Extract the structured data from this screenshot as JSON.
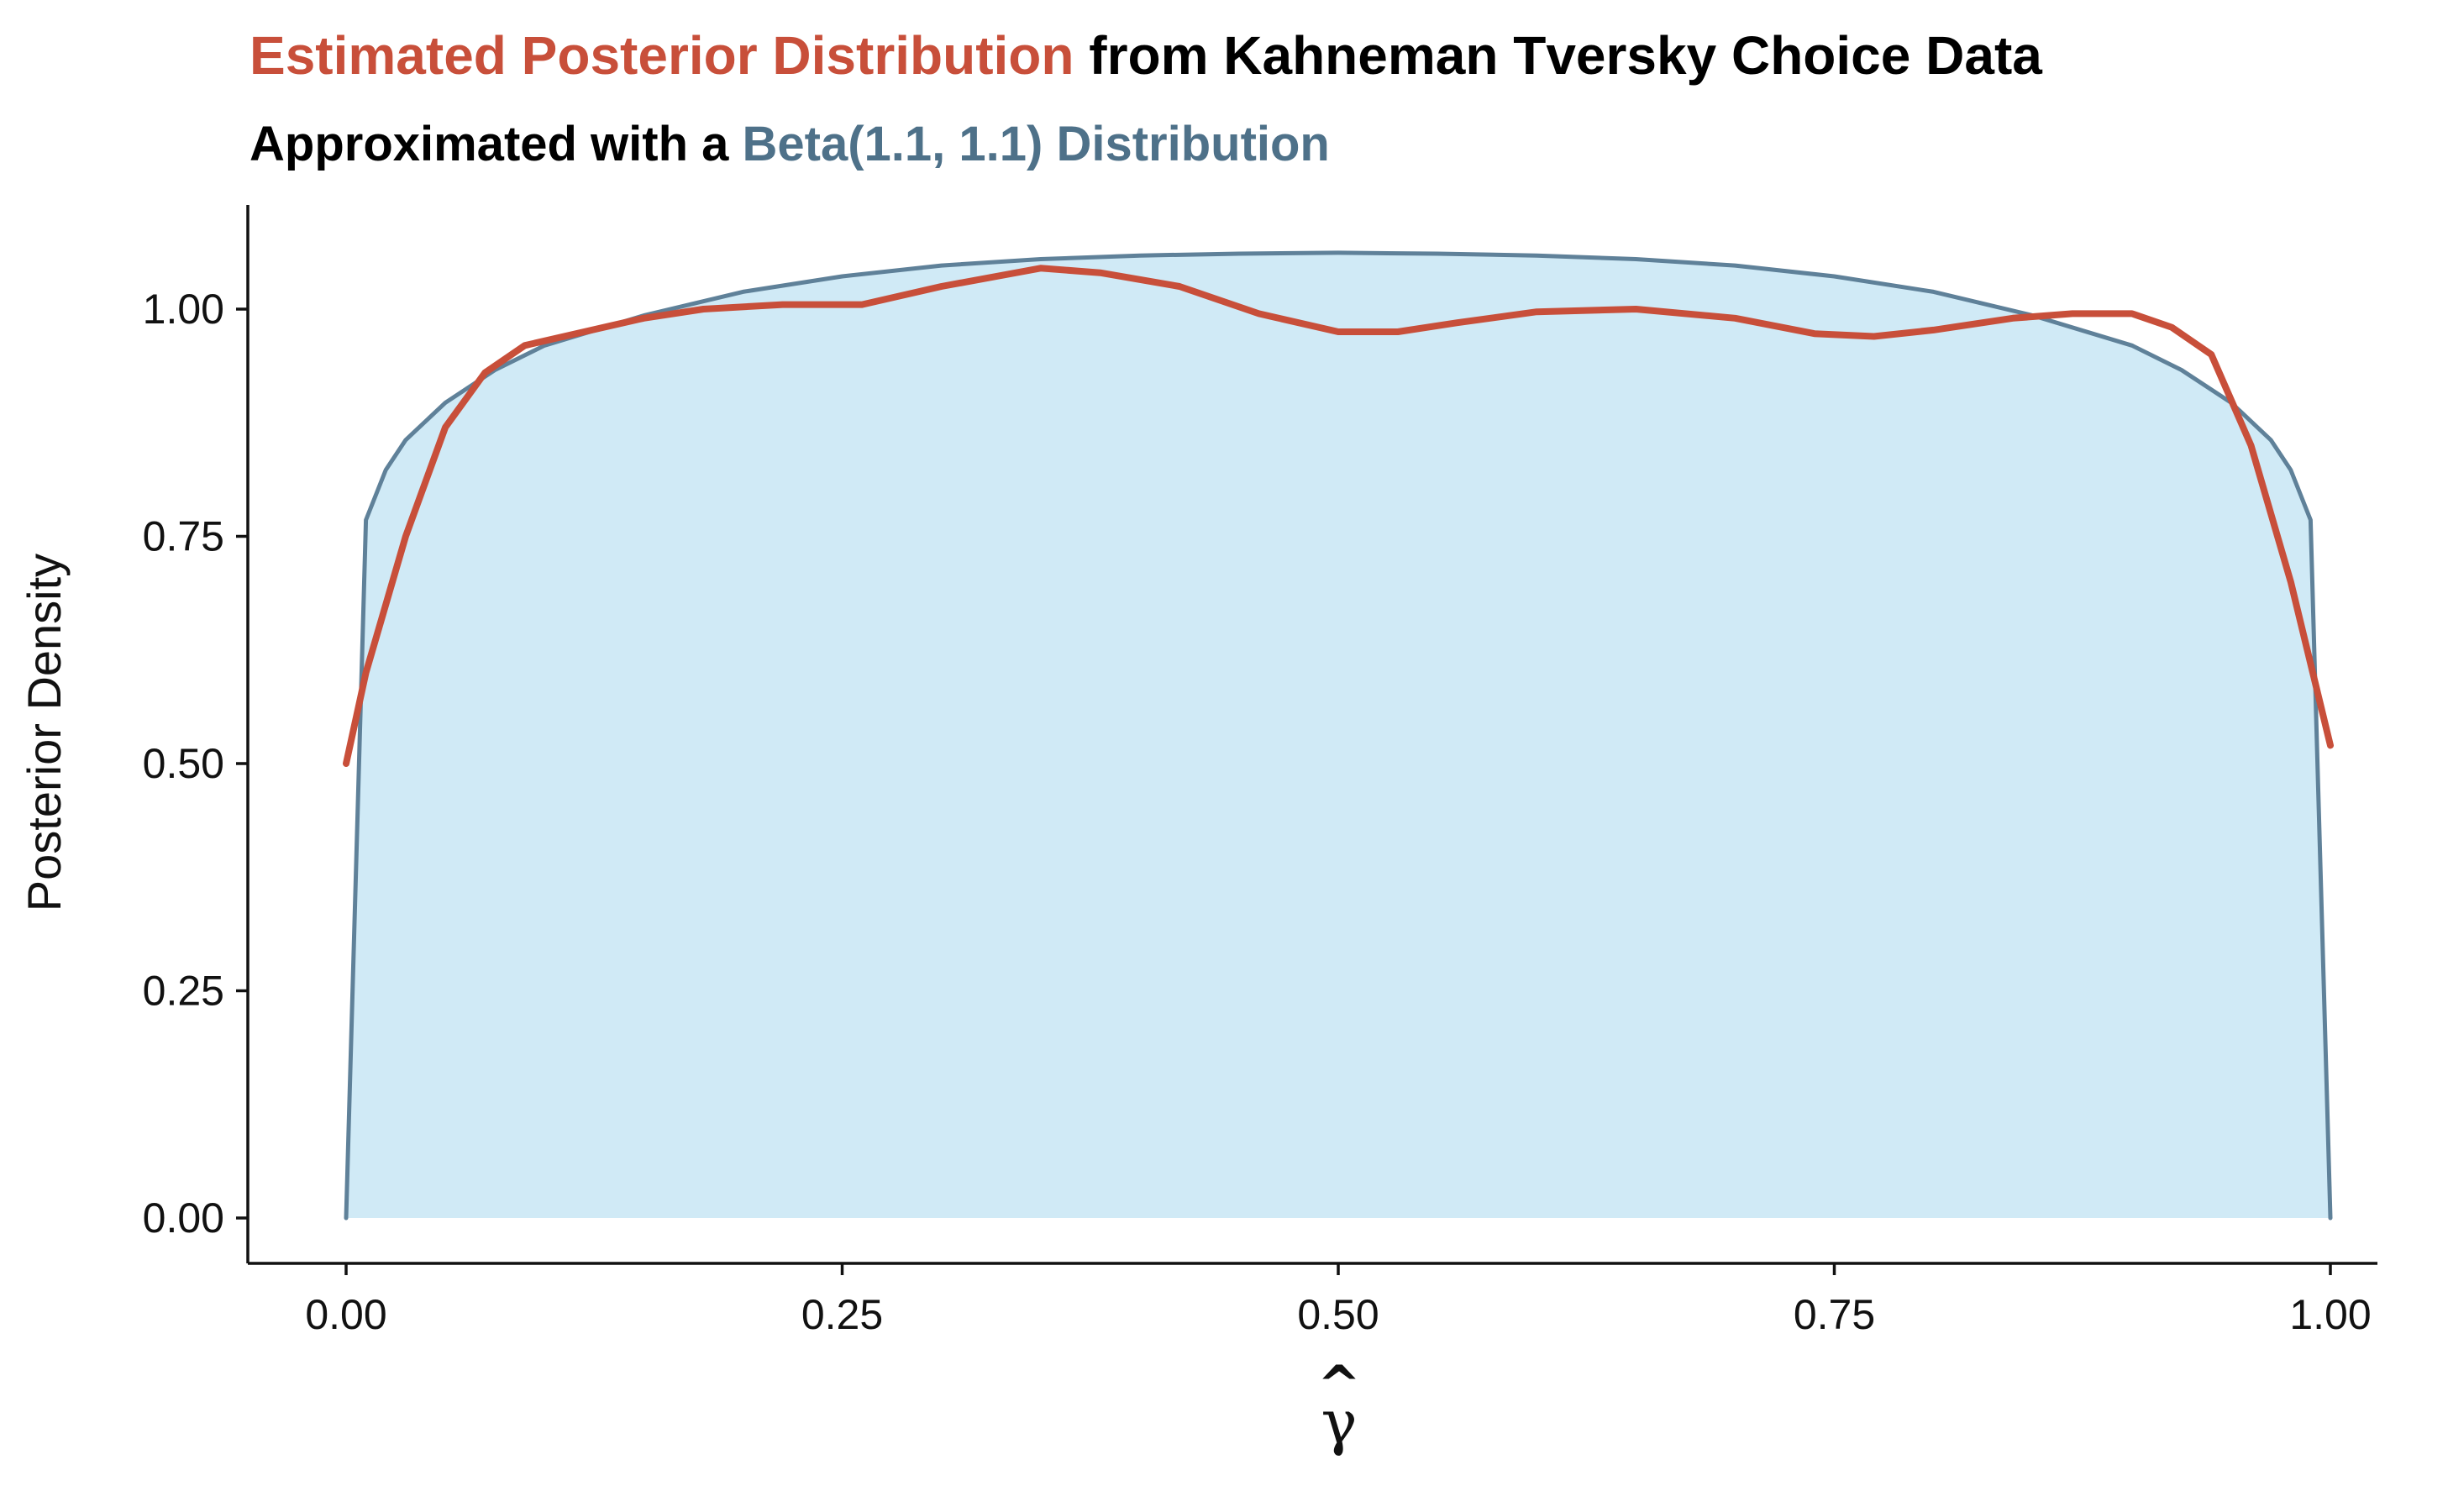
{
  "chart_data": {
    "type": "area",
    "title": {
      "highlight": "Estimated Posterior Distribution",
      "rest": " from Kahneman Tversky Choice Data",
      "highlight_color": "#c84f3a",
      "rest_color": "#000000"
    },
    "subtitle": {
      "prefix": "Approximated with a ",
      "highlight": "Beta(1.1, 1.1) Distribution",
      "prefix_color": "#000000",
      "highlight_color": "#4e7189"
    },
    "xlabel": "γ",
    "xlabel_hat": "^",
    "ylabel": "Posterior Density",
    "xlim": [
      -0.05,
      1.05
    ],
    "ylim": [
      -0.05,
      1.12
    ],
    "x_ticks": [
      0.0,
      0.25,
      0.5,
      0.75,
      1.0
    ],
    "x_tick_labels": [
      "0.00",
      "0.25",
      "0.50",
      "0.75",
      "1.00"
    ],
    "y_ticks": [
      0.0,
      0.25,
      0.5,
      0.75,
      1.0
    ],
    "y_tick_labels": [
      "0.00",
      "0.25",
      "0.50",
      "0.75",
      "1.00"
    ],
    "grid": false,
    "legend": "none",
    "series": [
      {
        "kind": "area",
        "fill_color": "#d0eaf6",
        "line_color": "#5f8199",
        "x": [
          0.0,
          0.01,
          0.02,
          0.03,
          0.05,
          0.075,
          0.1,
          0.15,
          0.2,
          0.25,
          0.3,
          0.35,
          0.4,
          0.45,
          0.5,
          0.55,
          0.6,
          0.65,
          0.7,
          0.75,
          0.8,
          0.85,
          0.9,
          0.925,
          0.95,
          0.97,
          0.98,
          0.99,
          1.0
        ],
        "y": [
          0.0,
          0.768,
          0.823,
          0.856,
          0.897,
          0.933,
          0.96,
          0.993,
          1.019,
          1.036,
          1.048,
          1.055,
          1.059,
          1.061,
          1.062,
          1.061,
          1.059,
          1.055,
          1.048,
          1.036,
          1.019,
          0.993,
          0.96,
          0.933,
          0.897,
          0.856,
          0.823,
          0.768,
          0.0
        ]
      },
      {
        "kind": "line",
        "line_color": "#c84f3a",
        "x": [
          0.0,
          0.01,
          0.03,
          0.05,
          0.07,
          0.09,
          0.12,
          0.15,
          0.18,
          0.22,
          0.26,
          0.3,
          0.35,
          0.38,
          0.42,
          0.46,
          0.5,
          0.53,
          0.56,
          0.6,
          0.65,
          0.7,
          0.74,
          0.77,
          0.8,
          0.84,
          0.87,
          0.9,
          0.92,
          0.94,
          0.96,
          0.98,
          1.0
        ],
        "y": [
          0.5,
          0.6,
          0.75,
          0.87,
          0.93,
          0.96,
          0.975,
          0.99,
          1.0,
          1.005,
          1.005,
          1.025,
          1.045,
          1.04,
          1.025,
          0.995,
          0.975,
          0.975,
          0.985,
          0.997,
          1.0,
          0.99,
          0.973,
          0.97,
          0.977,
          0.99,
          0.995,
          0.995,
          0.98,
          0.95,
          0.85,
          0.7,
          0.52
        ]
      }
    ]
  }
}
